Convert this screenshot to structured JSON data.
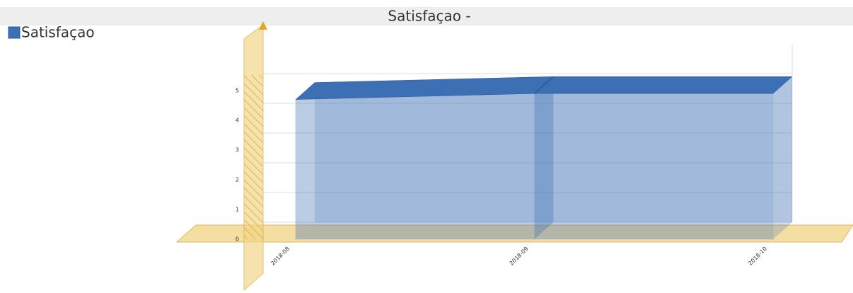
{
  "chart_data": {
    "type": "area3d",
    "title": "Satisfaçao -",
    "categories": [
      "2018-08",
      "2018-09",
      "2018-10"
    ],
    "series": [
      {
        "name": "Satisfaçao",
        "color": "#3d6fb5",
        "values": [
          4.7,
          4.9,
          4.9
        ]
      }
    ],
    "ylim": [
      0,
      6
    ],
    "yticks": [
      0,
      1,
      2,
      3,
      4,
      5
    ],
    "grid": true
  }
}
